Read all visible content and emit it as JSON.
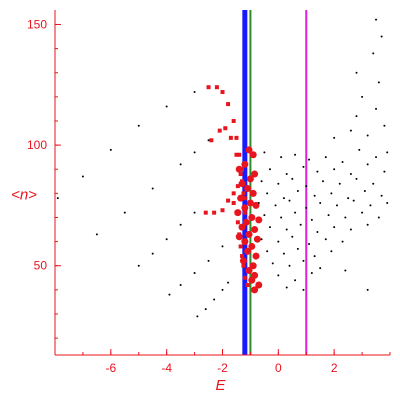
{
  "chart_data": {
    "type": "scatter",
    "xlabel": "E",
    "ylabel": "<n>",
    "xlim": [
      -8.0,
      4.0
    ],
    "ylim": [
      13,
      156
    ],
    "xticks": [
      -6,
      -4,
      -2,
      0,
      2
    ],
    "yticks": [
      50,
      100,
      150
    ],
    "grid": false,
    "colors": {
      "axis": "#e8141e",
      "black_points": "#000000",
      "red_points": "#e8141e",
      "blue_line": "#1a1aff",
      "green_line": "#2e8b2e",
      "magenta_line": "#e020e0"
    },
    "vertical_lines": [
      {
        "x": -1.2,
        "color": "#1a1aff",
        "width": 5
      },
      {
        "x": -1.0,
        "color": "#2e8b2e",
        "width": 2
      },
      {
        "x": 1.0,
        "color": "#e020e0",
        "width": 2
      }
    ],
    "series": [
      {
        "marker": "dot-black",
        "points": [
          [
            -7.9,
            78
          ],
          [
            -7.0,
            87
          ],
          [
            -6.0,
            98
          ],
          [
            -5.0,
            108
          ],
          [
            -4.0,
            116
          ],
          [
            -3.0,
            122
          ],
          [
            -2.5,
            124
          ]
        ]
      },
      {
        "marker": "dot-black",
        "points": [
          [
            -6.5,
            63
          ],
          [
            -5.5,
            72
          ],
          [
            -4.5,
            82
          ],
          [
            -3.5,
            92
          ],
          [
            -3.0,
            97
          ],
          [
            -2.5,
            102
          ]
        ]
      },
      {
        "marker": "dot-black",
        "points": [
          [
            -5.0,
            50
          ],
          [
            -4.5,
            55
          ],
          [
            -4.0,
            61
          ],
          [
            -3.5,
            67
          ],
          [
            -3.0,
            72
          ]
        ]
      },
      {
        "marker": "dot-black",
        "points": [
          [
            -3.9,
            38
          ],
          [
            -3.5,
            42
          ],
          [
            -3.0,
            47
          ],
          [
            -2.5,
            52
          ],
          [
            -2.0,
            58
          ]
        ]
      },
      {
        "marker": "dot-black",
        "points": [
          [
            -2.9,
            29
          ],
          [
            -2.6,
            32
          ],
          [
            -2.3,
            36
          ],
          [
            -2.0,
            40
          ],
          [
            -1.8,
            43
          ]
        ]
      },
      {
        "marker": "dot-red",
        "points": [
          [
            -2.5,
            124
          ],
          [
            -2.2,
            124
          ],
          [
            -2.0,
            122
          ],
          [
            -1.8,
            117
          ],
          [
            -1.6,
            110
          ],
          [
            -1.5,
            103
          ],
          [
            -1.4,
            96
          ],
          [
            -1.3,
            90
          ],
          [
            -1.25,
            84
          ],
          [
            -1.2,
            78
          ]
        ]
      },
      {
        "marker": "dot-red",
        "points": [
          [
            -2.4,
            102
          ],
          [
            -2.1,
            106
          ],
          [
            -1.9,
            107
          ],
          [
            -1.7,
            103
          ],
          [
            -1.5,
            96
          ],
          [
            -1.35,
            88
          ],
          [
            -1.25,
            80
          ],
          [
            -1.2,
            72
          ]
        ]
      },
      {
        "marker": "dot-red",
        "points": [
          [
            -2.6,
            72
          ],
          [
            -2.3,
            72
          ],
          [
            -2.0,
            73
          ],
          [
            -1.8,
            77
          ],
          [
            -1.6,
            80
          ],
          [
            -1.45,
            83
          ],
          [
            -1.3,
            85
          ]
        ]
      },
      {
        "marker": "dot-red",
        "points": [
          [
            -1.6,
            76
          ],
          [
            -1.5,
            72
          ],
          [
            -1.45,
            68
          ],
          [
            -1.4,
            63
          ],
          [
            -1.35,
            58
          ],
          [
            -1.3,
            54
          ],
          [
            -1.25,
            50
          ],
          [
            -1.2,
            45
          ],
          [
            -1.1,
            42
          ],
          [
            -0.9,
            40
          ]
        ]
      },
      {
        "marker": "dot-red-large",
        "points": [
          [
            -1.05,
            98
          ],
          [
            -0.9,
            96
          ],
          [
            -1.2,
            92
          ],
          [
            -1.4,
            90
          ],
          [
            -0.85,
            88
          ],
          [
            -1.0,
            86
          ],
          [
            -1.3,
            84
          ],
          [
            -1.1,
            82
          ],
          [
            -0.9,
            80
          ],
          [
            -1.35,
            78
          ],
          [
            -1.0,
            76
          ],
          [
            -0.8,
            75
          ],
          [
            -1.2,
            74
          ],
          [
            -1.45,
            72
          ],
          [
            -0.95,
            70
          ],
          [
            -0.7,
            69
          ],
          [
            -1.15,
            68
          ],
          [
            -1.3,
            66
          ],
          [
            -0.85,
            65
          ],
          [
            -1.05,
            63
          ],
          [
            -1.4,
            62
          ],
          [
            -0.75,
            61
          ],
          [
            -1.2,
            60
          ],
          [
            -0.95,
            58
          ],
          [
            -1.1,
            56
          ],
          [
            -0.8,
            54
          ],
          [
            -1.25,
            52
          ],
          [
            -0.9,
            50
          ],
          [
            -1.05,
            48
          ],
          [
            -0.85,
            46
          ],
          [
            -0.95,
            44
          ],
          [
            -0.7,
            42
          ],
          [
            -0.85,
            40
          ]
        ]
      },
      {
        "marker": "dot-black",
        "points": [
          [
            -0.5,
            97
          ],
          [
            0.1,
            95
          ],
          [
            0.6,
            96
          ],
          [
            1.1,
            94
          ],
          [
            1.7,
            95
          ],
          [
            2.3,
            93
          ],
          [
            2.9,
            98
          ],
          [
            3.5,
            95
          ],
          [
            3.9,
            97
          ],
          [
            -0.3,
            90
          ],
          [
            0.3,
            88
          ],
          [
            0.9,
            91
          ],
          [
            1.4,
            89
          ],
          [
            2.0,
            90
          ],
          [
            2.6,
            88
          ],
          [
            3.2,
            92
          ],
          [
            3.8,
            89
          ],
          [
            -0.6,
            85
          ],
          [
            0.0,
            84
          ],
          [
            0.5,
            86
          ],
          [
            1.0,
            83
          ],
          [
            1.6,
            85
          ],
          [
            2.2,
            84
          ],
          [
            2.8,
            86
          ],
          [
            3.4,
            84
          ],
          [
            -0.4,
            80
          ],
          [
            0.2,
            78
          ],
          [
            0.7,
            81
          ],
          [
            1.3,
            79
          ],
          [
            1.9,
            80
          ],
          [
            2.5,
            78
          ],
          [
            3.1,
            81
          ],
          [
            3.7,
            79
          ],
          [
            -0.7,
            76
          ],
          [
            -0.1,
            75
          ],
          [
            0.4,
            77
          ],
          [
            1.0,
            74
          ],
          [
            1.5,
            76
          ],
          [
            2.1,
            75
          ],
          [
            2.7,
            77
          ],
          [
            3.3,
            75
          ],
          [
            3.9,
            76
          ],
          [
            -0.5,
            71
          ],
          [
            0.1,
            70
          ],
          [
            0.6,
            72
          ],
          [
            1.2,
            69
          ],
          [
            1.8,
            71
          ],
          [
            2.4,
            70
          ],
          [
            3.0,
            72
          ],
          [
            3.6,
            70
          ],
          [
            -0.3,
            66
          ],
          [
            0.3,
            65
          ],
          [
            0.8,
            67
          ],
          [
            1.4,
            64
          ],
          [
            2.0,
            66
          ],
          [
            2.6,
            65
          ],
          [
            3.2,
            67
          ],
          [
            -0.6,
            61
          ],
          [
            0.0,
            60
          ],
          [
            0.5,
            62
          ],
          [
            1.1,
            59
          ],
          [
            1.7,
            61
          ],
          [
            2.3,
            60
          ],
          [
            -0.4,
            56
          ],
          [
            0.2,
            55
          ],
          [
            0.7,
            57
          ],
          [
            1.3,
            54
          ],
          [
            1.9,
            56
          ],
          [
            -0.2,
            51
          ],
          [
            0.4,
            50
          ],
          [
            0.9,
            52
          ],
          [
            1.5,
            49
          ],
          [
            0.0,
            46
          ],
          [
            0.6,
            44
          ],
          [
            1.2,
            47
          ],
          [
            0.3,
            41
          ],
          [
            0.9,
            40
          ],
          [
            2.0,
            103
          ],
          [
            2.6,
            106
          ],
          [
            3.2,
            104
          ],
          [
            3.8,
            108
          ],
          [
            2.8,
            112
          ],
          [
            3.5,
            115
          ],
          [
            3.0,
            120
          ],
          [
            3.6,
            126
          ],
          [
            2.8,
            130
          ],
          [
            3.4,
            138
          ],
          [
            3.7,
            145
          ],
          [
            3.5,
            152
          ],
          [
            3.2,
            40
          ],
          [
            2.4,
            48
          ]
        ]
      }
    ]
  }
}
